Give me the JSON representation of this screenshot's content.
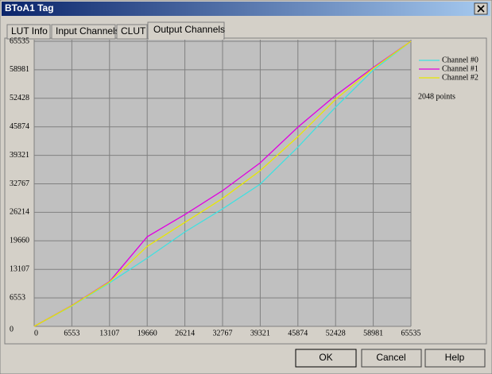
{
  "window": {
    "title": "BToA1 Tag"
  },
  "tabs": [
    "LUT Info",
    "Input Channels",
    "CLUT",
    "Output Channels"
  ],
  "chart_data": {
    "type": "line",
    "x": [
      0,
      6553,
      13107,
      19660,
      26214,
      32767,
      39321,
      45874,
      52428,
      58981,
      65535
    ],
    "series": [
      {
        "name": "Channel #0",
        "color": "#40e0e0",
        "values": [
          0,
          4700,
          10000,
          15700,
          21700,
          27000,
          32700,
          41200,
          50400,
          58900,
          65535
        ]
      },
      {
        "name": "Channel #1",
        "color": "#e000e0",
        "values": [
          0,
          4800,
          10300,
          20600,
          25700,
          31200,
          37600,
          45800,
          53100,
          59500,
          65535
        ]
      },
      {
        "name": "Channel #2",
        "color": "#e8e800",
        "values": [
          0,
          4750,
          10200,
          18400,
          23900,
          29400,
          35800,
          43600,
          52200,
          59300,
          65535
        ]
      }
    ],
    "xlim": [
      0,
      65535
    ],
    "ylim": [
      0,
      65535
    ],
    "xticks": [
      0,
      6553,
      13107,
      19660,
      26214,
      32767,
      39321,
      45874,
      52428,
      58981,
      65535
    ],
    "yticks": [
      0,
      6553,
      13107,
      19660,
      26214,
      32767,
      39321,
      45874,
      52428,
      58981,
      65535
    ],
    "grid": true,
    "annotation": "2048 points"
  },
  "buttons": [
    "OK",
    "Cancel",
    "Help"
  ]
}
